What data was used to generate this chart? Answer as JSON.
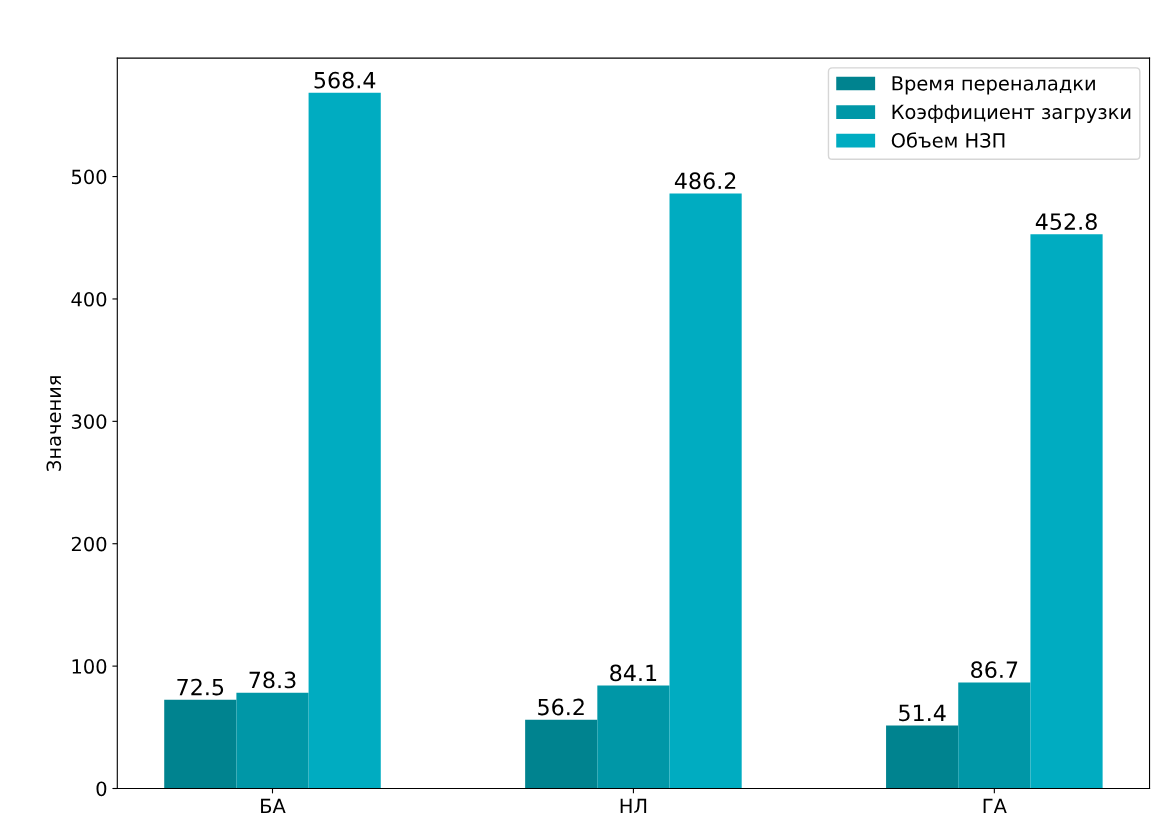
{
  "chart_data": {
    "type": "bar",
    "ylabel": "Значения",
    "categories": [
      "БА",
      "НЛ",
      "ГА"
    ],
    "series": [
      {
        "name": "Время переналадки",
        "color": "#00838f",
        "values": [
          72.5,
          56.2,
          51.4
        ]
      },
      {
        "name": "Коэффициент загрузки",
        "color": "#0097a7",
        "values": [
          78.3,
          84.1,
          86.7
        ]
      },
      {
        "name": "Объем НЗП",
        "color": "#00acc1",
        "values": [
          568.4,
          486.2,
          452.8
        ]
      }
    ],
    "ylim": [
      0,
      596.8
    ],
    "yticks": [
      0,
      100,
      200,
      300,
      400,
      500
    ],
    "data_labels": true,
    "legend": "top right",
    "grid": false
  }
}
